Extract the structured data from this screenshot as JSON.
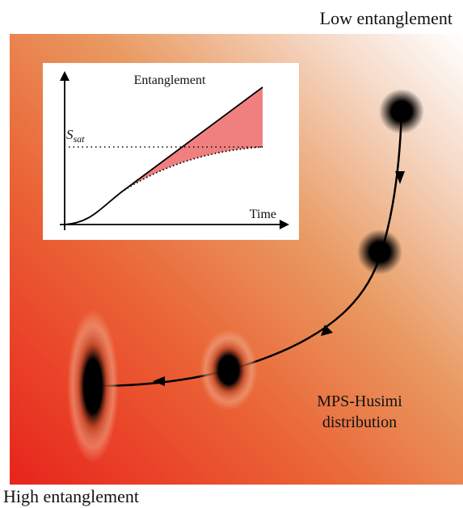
{
  "labels": {
    "top": "Low entanglement",
    "bottom": "High entanglement",
    "distribution": [
      "MPS-Husimi",
      "distribution"
    ]
  },
  "inset": {
    "title": "Entanglement",
    "saturation": {
      "symbol": "S",
      "subscript": "sat"
    },
    "x_axis": "Time"
  }
}
